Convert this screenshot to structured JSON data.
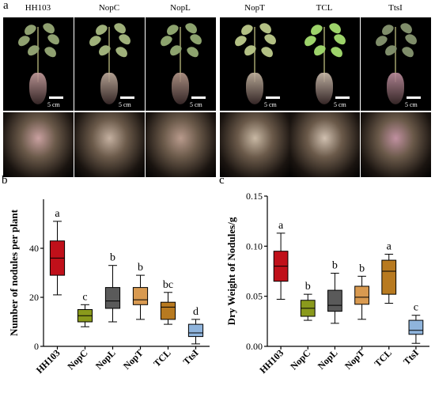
{
  "panel_labels": {
    "a": "a",
    "b": "b",
    "c": "c"
  },
  "strains": [
    "HH103",
    "NopC",
    "NopL",
    "NopT",
    "TCL",
    "TtsI"
  ],
  "scale_label": "5 cm",
  "photo_colors": {
    "leaf": [
      "#8fa070",
      "#9fb07a",
      "#8da36e",
      "#b3c084",
      "#9dd36a",
      "#7f8d6a"
    ],
    "root": [
      "#c9a0a0",
      "#c4b0a0",
      "#b89a8c",
      "#c8b8a4",
      "#d0c0b0",
      "#c090a0"
    ]
  },
  "chart_data": [
    {
      "type": "boxplot",
      "title": "",
      "xlabel": "",
      "ylabel": "Number of nodules per plant",
      "ylim": [
        0,
        60
      ],
      "yticks": [
        0,
        20,
        40
      ],
      "categories": [
        "HH103",
        "NopC",
        "NopL",
        "NopT",
        "TCL",
        "TtsI"
      ],
      "boxes": [
        {
          "min": 21,
          "q1": 29,
          "median": 36,
          "q3": 43,
          "max": 51,
          "letter": "a",
          "color": "#c0101a"
        },
        {
          "min": 8,
          "q1": 10,
          "median": 12.5,
          "q3": 15,
          "max": 17,
          "letter": "c",
          "color": "#8a9a1c"
        },
        {
          "min": 10,
          "q1": 15.5,
          "median": 18.5,
          "q3": 24,
          "max": 33,
          "letter": "b",
          "color": "#5a5a5a"
        },
        {
          "min": 11,
          "q1": 17,
          "median": 19,
          "q3": 24,
          "max": 29,
          "letter": "b",
          "color": "#d99a50"
        },
        {
          "min": 9,
          "q1": 11,
          "median": 16,
          "q3": 18,
          "max": 22,
          "letter": "bc",
          "color": "#b87a20"
        },
        {
          "min": 1,
          "q1": 4,
          "median": 5.5,
          "q3": 9,
          "max": 11,
          "letter": "d",
          "color": "#8fb4dc"
        }
      ]
    },
    {
      "type": "boxplot",
      "title": "",
      "xlabel": "",
      "ylabel": "Dry Weight of Nodules/g",
      "ylim": [
        0,
        0.15
      ],
      "yticks": [
        "0.00",
        "0.05",
        "0.10",
        "0.15"
      ],
      "categories": [
        "HH103",
        "NopC",
        "NopL",
        "NopT",
        "TCL",
        "TtsI"
      ],
      "boxes": [
        {
          "min": 0.047,
          "q1": 0.065,
          "median": 0.08,
          "q3": 0.095,
          "max": 0.113,
          "letter": "a",
          "color": "#c0101a"
        },
        {
          "min": 0.026,
          "q1": 0.03,
          "median": 0.038,
          "q3": 0.046,
          "max": 0.052,
          "letter": "b",
          "color": "#8a9a1c"
        },
        {
          "min": 0.023,
          "q1": 0.035,
          "median": 0.041,
          "q3": 0.056,
          "max": 0.073,
          "letter": "b",
          "color": "#5a5a5a"
        },
        {
          "min": 0.027,
          "q1": 0.042,
          "median": 0.049,
          "q3": 0.06,
          "max": 0.07,
          "letter": "b",
          "color": "#d99a50"
        },
        {
          "min": 0.043,
          "q1": 0.052,
          "median": 0.075,
          "q3": 0.086,
          "max": 0.092,
          "letter": "a",
          "color": "#b87a20"
        },
        {
          "min": 0.003,
          "q1": 0.012,
          "median": 0.016,
          "q3": 0.026,
          "max": 0.031,
          "letter": "c",
          "color": "#8fb4dc"
        }
      ]
    }
  ]
}
